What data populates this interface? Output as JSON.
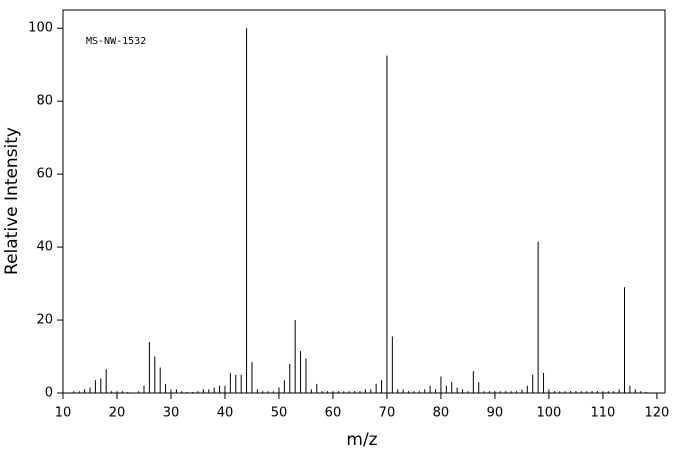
{
  "chart_data": {
    "type": "bar",
    "annotation": "MS-NW-1532",
    "xlabel": "m/z",
    "ylabel": "Relative Intensity",
    "color": "#000000",
    "x": [
      12,
      13,
      14,
      15,
      16,
      17,
      18,
      19,
      20,
      21,
      22,
      24,
      25,
      26,
      27,
      28,
      29,
      30,
      31,
      32,
      33,
      34,
      35,
      36,
      37,
      38,
      39,
      40,
      41,
      42,
      43,
      44,
      45,
      46,
      47,
      48,
      49,
      50,
      51,
      52,
      53,
      54,
      55,
      56,
      57,
      58,
      59,
      60,
      61,
      62,
      63,
      64,
      65,
      66,
      67,
      68,
      69,
      70,
      71,
      72,
      73,
      74,
      75,
      76,
      77,
      78,
      79,
      80,
      81,
      82,
      83,
      84,
      85,
      86,
      87,
      88,
      89,
      90,
      91,
      92,
      93,
      94,
      95,
      96,
      97,
      98,
      99,
      100,
      101,
      102,
      103,
      104,
      105,
      106,
      107,
      108,
      109,
      110,
      111,
      112,
      113,
      114,
      115,
      116,
      117,
      118
    ],
    "values": [
      0.5,
      0.5,
      1,
      1.5,
      3.5,
      4,
      6.5,
      0.5,
      0.5,
      0.5,
      0.3,
      0.5,
      2,
      14,
      10,
      7,
      2.5,
      1,
      1,
      0.5,
      0.3,
      0.3,
      0.5,
      1,
      1,
      1.5,
      2,
      2,
      5.5,
      5,
      5,
      100,
      8.5,
      1,
      0.5,
      0.5,
      0.5,
      1.5,
      3.5,
      8,
      20,
      11.5,
      9.5,
      1,
      2.5,
      0.5,
      0.5,
      0.5,
      0.5,
      0.5,
      0.5,
      0.5,
      0.5,
      1,
      1,
      2.5,
      3.5,
      92.5,
      15.5,
      1,
      1,
      0.5,
      0.5,
      0.5,
      1,
      2,
      1,
      4.5,
      2,
      3,
      1.5,
      1,
      0.5,
      6,
      3,
      0.5,
      0.5,
      0.5,
      0.5,
      0.5,
      0.5,
      0.5,
      1,
      2,
      5,
      41.5,
      5.5,
      1,
      0.5,
      0.5,
      0.5,
      0.5,
      0.5,
      0.5,
      0.5,
      0.5,
      0.5,
      0.5,
      0.5,
      0.5,
      1,
      29,
      2,
      1,
      0.5,
      0.3
    ],
    "xlim": [
      10,
      121.5
    ],
    "xticks": [
      10,
      20,
      30,
      40,
      50,
      60,
      70,
      80,
      90,
      100,
      110,
      120
    ],
    "ylim": [
      0,
      105
    ],
    "yticks": [
      0,
      20,
      40,
      60,
      80,
      100
    ]
  }
}
